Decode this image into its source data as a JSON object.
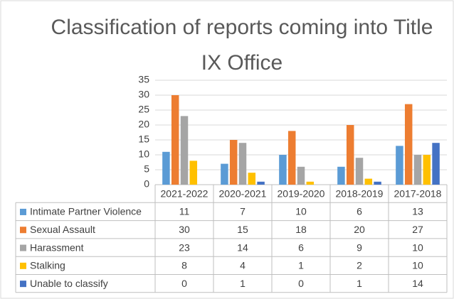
{
  "chart_data": {
    "type": "bar",
    "title": "Classification of reports coming into Title IX Office",
    "categories": [
      "2021-2022",
      "2020-2021",
      "2019-2020",
      "2018-2019",
      "2017-2018"
    ],
    "series": [
      {
        "name": "Intimate Partner Violence",
        "color": "#5b9bd5",
        "values": [
          11,
          7,
          10,
          6,
          13
        ]
      },
      {
        "name": "Sexual Assault",
        "color": "#ed7d31",
        "values": [
          30,
          15,
          18,
          20,
          27
        ]
      },
      {
        "name": "Harassment",
        "color": "#a5a5a5",
        "values": [
          23,
          14,
          6,
          9,
          10
        ]
      },
      {
        "name": "Stalking",
        "color": "#ffc000",
        "values": [
          8,
          4,
          1,
          2,
          10
        ]
      },
      {
        "name": "Unable to classify",
        "color": "#4472c4",
        "values": [
          0,
          1,
          0,
          1,
          14
        ]
      }
    ],
    "ylim": [
      0,
      35
    ],
    "yticks": [
      0,
      5,
      10,
      15,
      20,
      25,
      30,
      35
    ],
    "grid": true
  }
}
